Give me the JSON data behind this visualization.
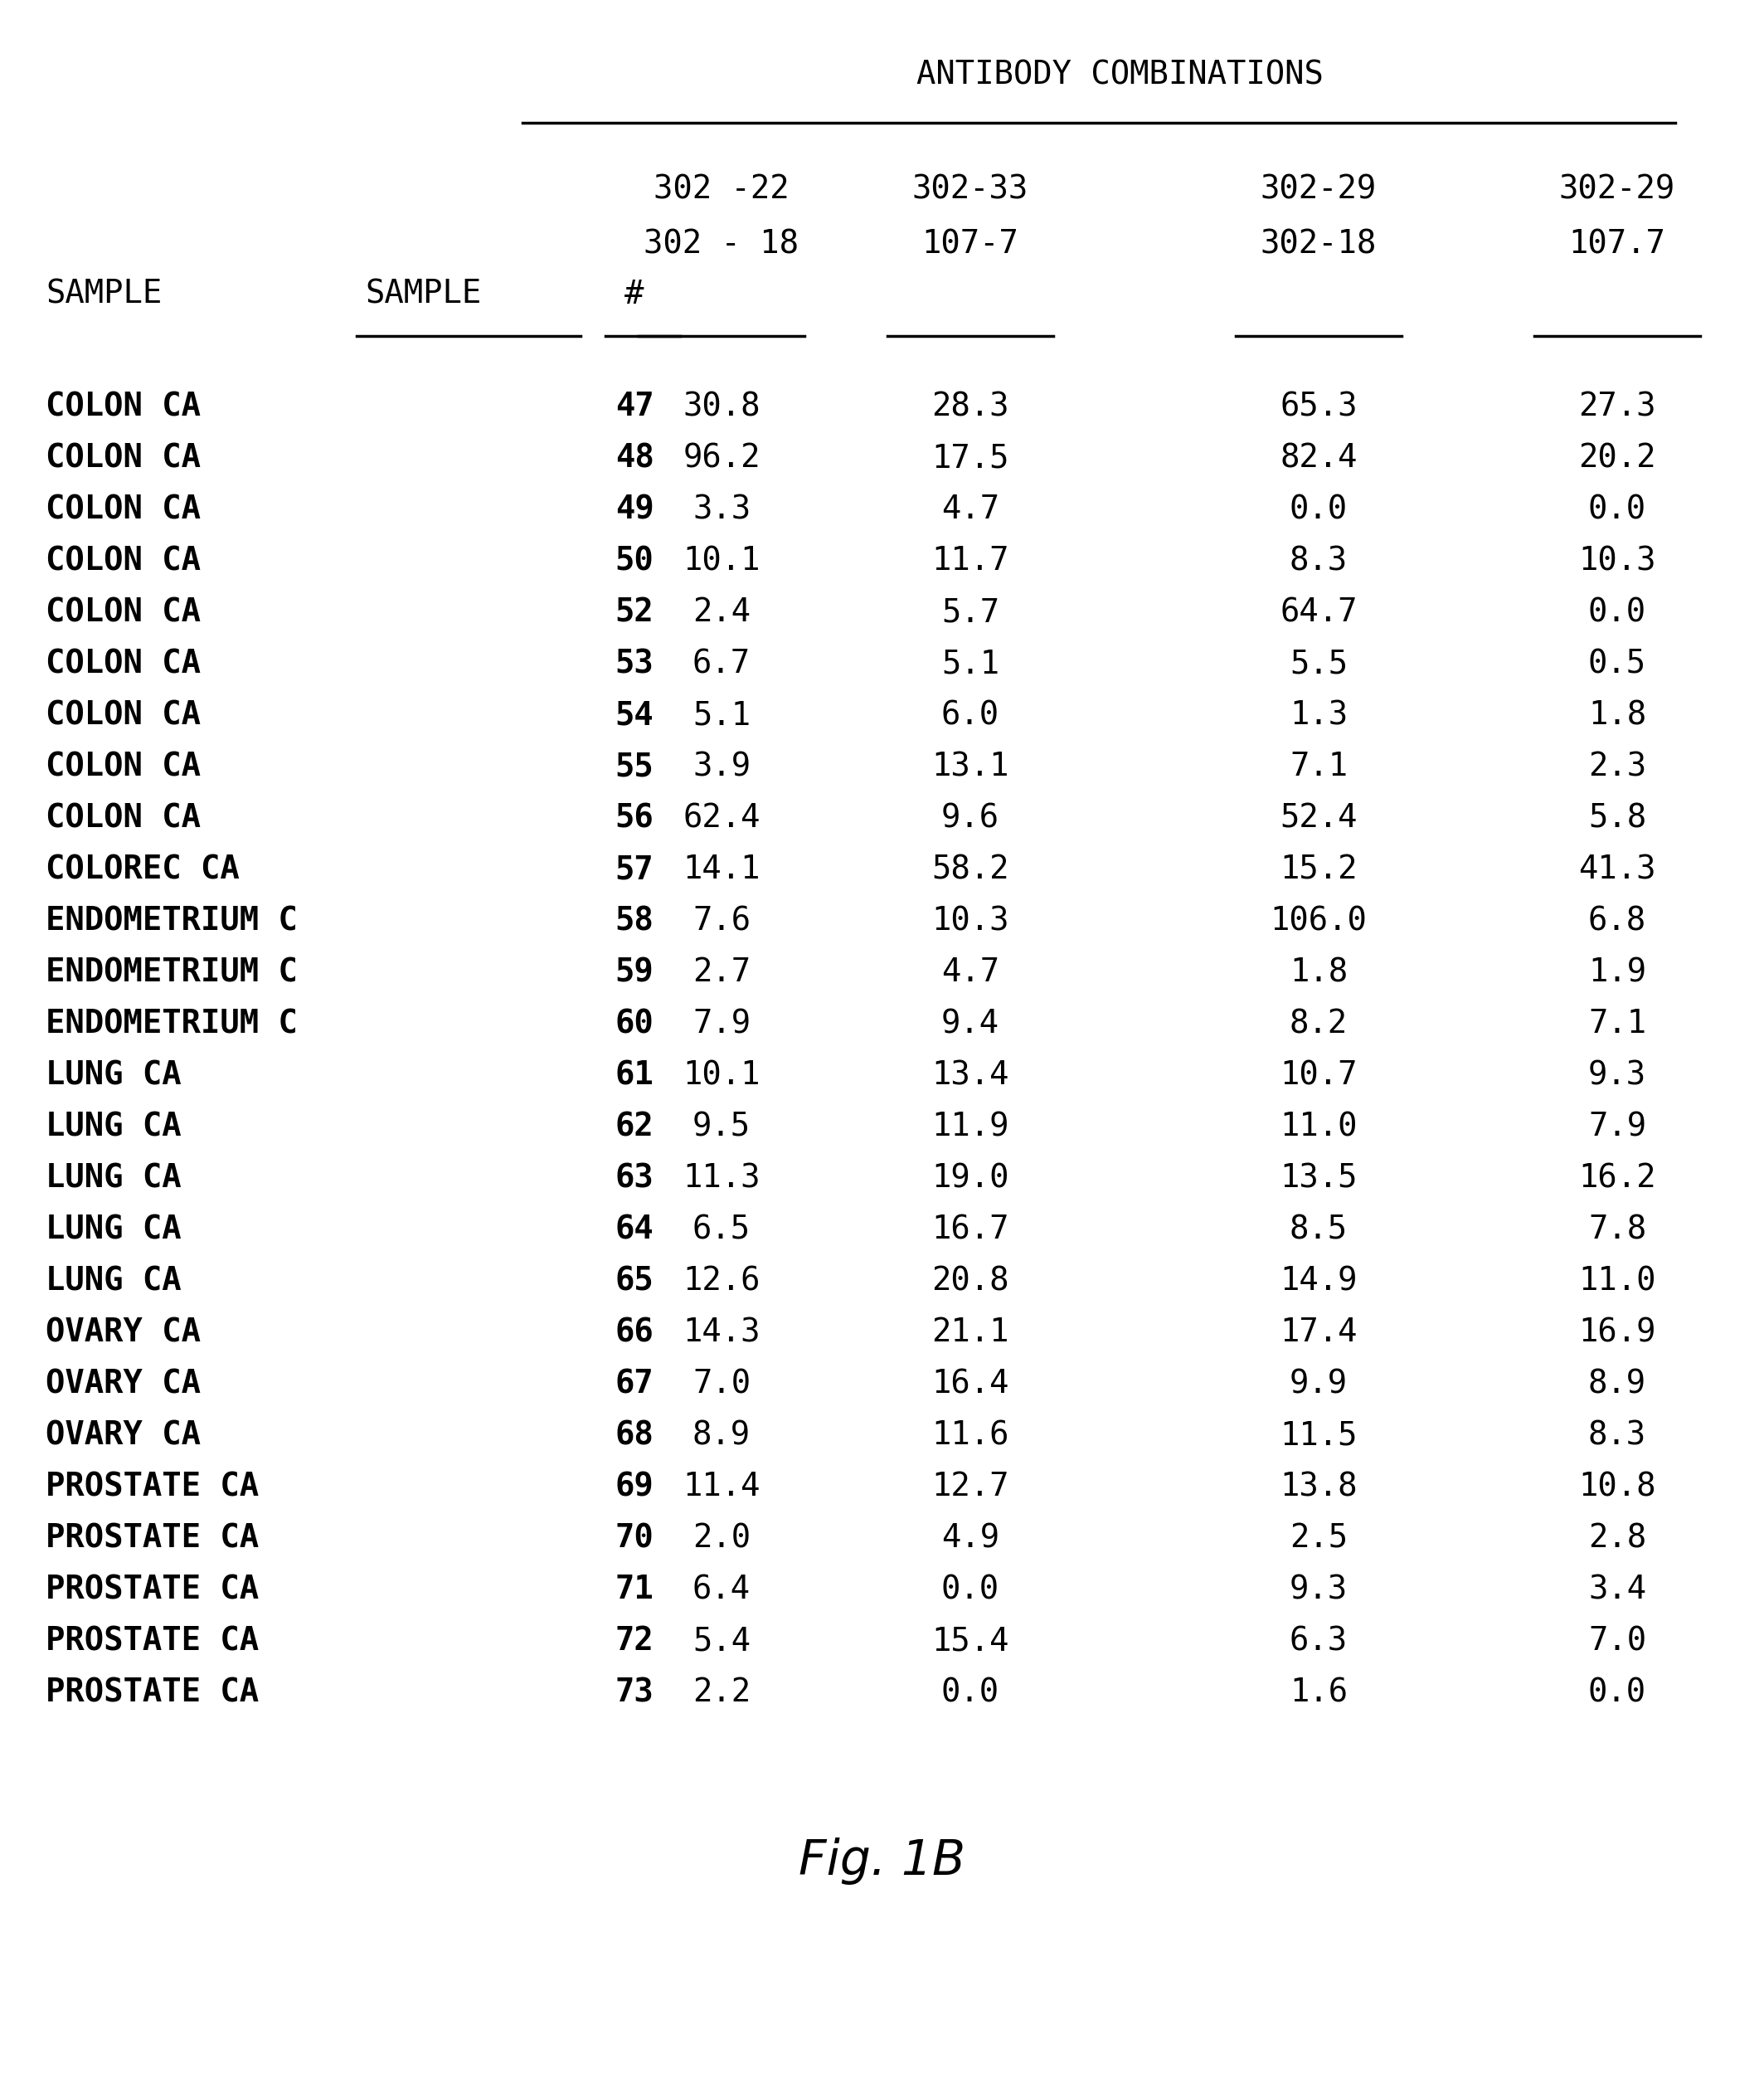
{
  "title": "ANTIBODY COMBINATIONS",
  "fig_label": "Fig. 1B",
  "col_headers_line1": [
    "302 -22",
    "302-33",
    "302-29",
    "302-29"
  ],
  "col_headers_line2": [
    "302 - 18",
    "107-7",
    "302-18",
    "107.7"
  ],
  "rows": [
    [
      "COLON CA",
      "47",
      "30.8",
      "28.3",
      "65.3",
      "27.3"
    ],
    [
      "COLON CA",
      "48",
      "96.2",
      "17.5",
      "82.4",
      "20.2"
    ],
    [
      "COLON CA",
      "49",
      "3.3",
      "4.7",
      "0.0",
      "0.0"
    ],
    [
      "COLON CA",
      "50",
      "10.1",
      "11.7",
      "8.3",
      "10.3"
    ],
    [
      "COLON CA",
      "52",
      "2.4",
      "5.7",
      "64.7",
      "0.0"
    ],
    [
      "COLON CA",
      "53",
      "6.7",
      "5.1",
      "5.5",
      "0.5"
    ],
    [
      "COLON CA",
      "54",
      "5.1",
      "6.0",
      "1.3",
      "1.8"
    ],
    [
      "COLON CA",
      "55",
      "3.9",
      "13.1",
      "7.1",
      "2.3"
    ],
    [
      "COLON CA",
      "56",
      "62.4",
      "9.6",
      "52.4",
      "5.8"
    ],
    [
      "COLOREC CA",
      "57",
      "14.1",
      "58.2",
      "15.2",
      "41.3"
    ],
    [
      "ENDOMETRIUM C",
      "58",
      "7.6",
      "10.3",
      "106.0",
      "6.8"
    ],
    [
      "ENDOMETRIUM C",
      "59",
      "2.7",
      "4.7",
      "1.8",
      "1.9"
    ],
    [
      "ENDOMETRIUM C",
      "60",
      "7.9",
      "9.4",
      "8.2",
      "7.1"
    ],
    [
      "LUNG CA",
      "61",
      "10.1",
      "13.4",
      "10.7",
      "9.3"
    ],
    [
      "LUNG CA",
      "62",
      "9.5",
      "11.9",
      "11.0",
      "7.9"
    ],
    [
      "LUNG CA",
      "63",
      "11.3",
      "19.0",
      "13.5",
      "16.2"
    ],
    [
      "LUNG CA",
      "64",
      "6.5",
      "16.7",
      "8.5",
      "7.8"
    ],
    [
      "LUNG CA",
      "65",
      "12.6",
      "20.8",
      "14.9",
      "11.0"
    ],
    [
      "OVARY CA",
      "66",
      "14.3",
      "21.1",
      "17.4",
      "16.9"
    ],
    [
      "OVARY CA",
      "67",
      "7.0",
      "16.4",
      "9.9",
      "8.9"
    ],
    [
      "OVARY CA",
      "68",
      "8.9",
      "11.6",
      "11.5",
      "8.3"
    ],
    [
      "PROSTATE CA",
      "69",
      "11.4",
      "12.7",
      "13.8",
      "10.8"
    ],
    [
      "PROSTATE CA",
      "70",
      "2.0",
      "4.9",
      "2.5",
      "2.8"
    ],
    [
      "PROSTATE CA",
      "71",
      "6.4",
      "0.0",
      "9.3",
      "3.4"
    ],
    [
      "PROSTATE CA",
      "72",
      "5.4",
      "15.4",
      "6.3",
      "7.0"
    ],
    [
      "PROSTATE CA",
      "73",
      "2.2",
      "0.0",
      "1.6",
      "0.0"
    ]
  ],
  "background_color": "#ffffff",
  "text_color": "#000000"
}
